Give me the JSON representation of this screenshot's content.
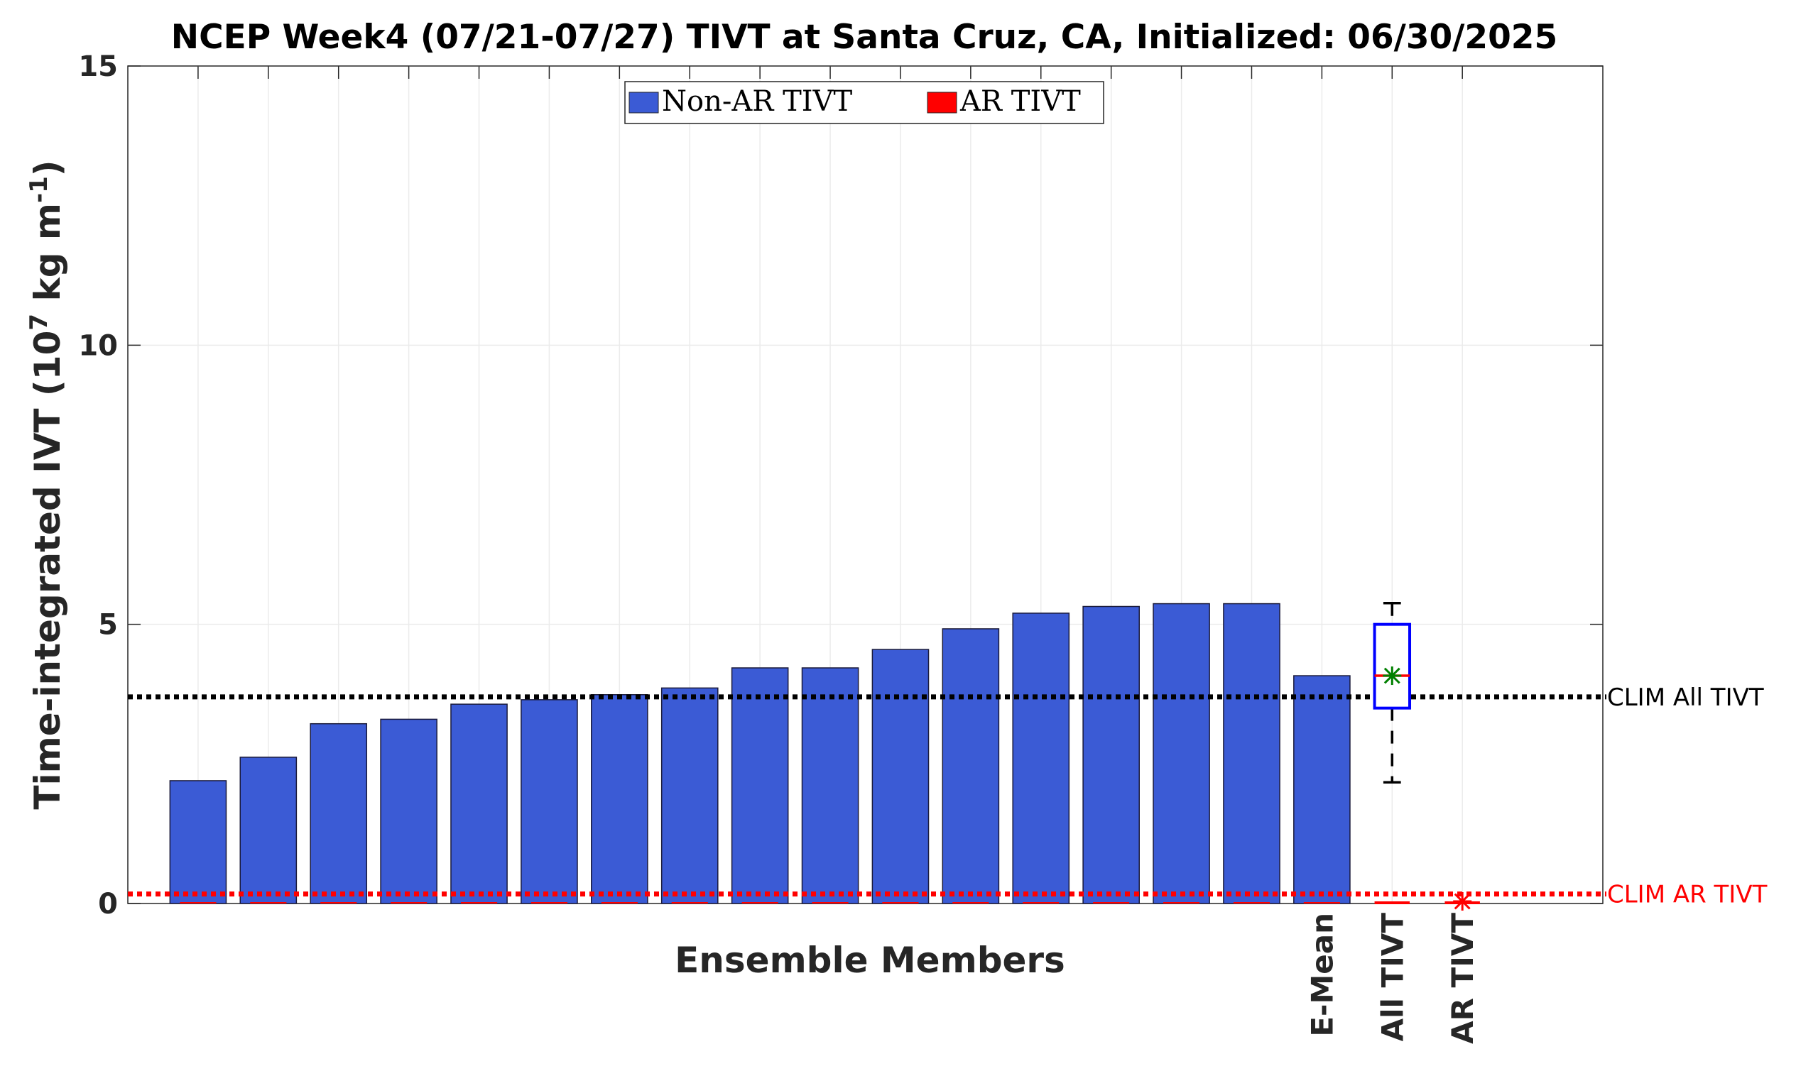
{
  "chart_data": {
    "type": "bar",
    "title": "NCEP Week4 (07/21-07/27) TIVT at Santa Cruz, CA, Initialized: 06/30/2025",
    "xlabel": "Ensemble Members",
    "ylabel": {
      "prefix": "Time-integrated IVT (10",
      "exp1": "7",
      "mid": " kg m",
      "exp2": "-1",
      "suffix": ")"
    },
    "ylim": [
      0,
      15
    ],
    "yticks": [
      0,
      5,
      10,
      15
    ],
    "ytick_labels": [
      "0",
      "5",
      "10",
      "15"
    ],
    "xtick_labels": [
      "E-Mean",
      "All TIVT",
      "AR TIVT"
    ],
    "grid": true,
    "legend_position": "top-center",
    "series": [
      {
        "name": "Non-AR TIVT",
        "color": "#3b5bd5",
        "values": [
          2.2,
          2.62,
          3.22,
          3.3,
          3.57,
          3.65,
          3.74,
          3.86,
          4.22,
          4.22,
          4.55,
          4.92,
          5.2,
          5.32,
          5.37,
          5.37,
          4.08
        ]
      },
      {
        "name": "AR TIVT",
        "color": "#ff0000",
        "values": [
          0,
          0,
          0,
          0,
          0,
          0,
          0,
          0,
          0,
          0,
          0,
          0,
          0,
          0,
          0,
          0,
          0
        ]
      }
    ],
    "boxplot_all_tivt": {
      "min": 2.17,
      "q1": 3.5,
      "median": 4.08,
      "mean": 4.08,
      "q3": 5.0,
      "max": 5.38,
      "box_color": "#0000ff",
      "median_color": "#ff0000",
      "mean_color": "#008000"
    },
    "ar_tivt_marker": {
      "value": 0,
      "color": "#ff0000"
    },
    "reference_lines": [
      {
        "label": "CLIM All TIVT",
        "value": 3.7,
        "color": "#000000"
      },
      {
        "label": "CLIM AR TIVT",
        "value": 0.17,
        "color": "#ff0000"
      }
    ]
  }
}
